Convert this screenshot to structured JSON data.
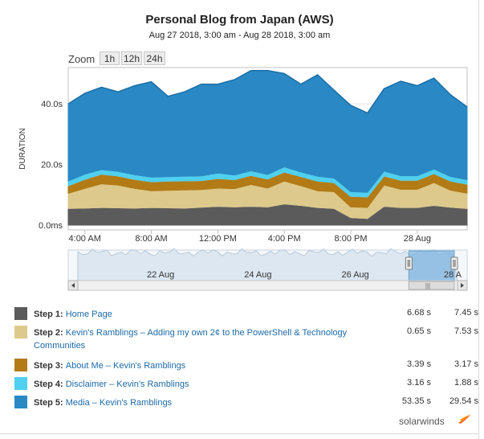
{
  "header": {
    "title": "Personal Blog from Japan (AWS)",
    "subtitle": "Aug 27 2018, 3:00 am - Aug 28 2018, 3:00 am"
  },
  "zoom": {
    "label": "Zoom",
    "buttons": [
      "1h",
      "12h",
      "24h"
    ]
  },
  "chart_data": {
    "type": "area",
    "stacked": true,
    "ylabel": "DURATION",
    "y_ticks": [
      "0.0ms",
      "20.0s",
      "40.0s"
    ],
    "ylim_seconds": [
      0,
      52
    ],
    "x_ticks": [
      "4:00 AM",
      "8:00 AM",
      "12:00 PM",
      "4:00 PM",
      "8:00 PM",
      "28 Aug"
    ],
    "x_hours": [
      0,
      1,
      2,
      3,
      4,
      5,
      6,
      7,
      8,
      9,
      10,
      11,
      12,
      13,
      14,
      15,
      16,
      17,
      18,
      19,
      20,
      21,
      22,
      23,
      24
    ],
    "grid": true,
    "legend": "bottom",
    "series": [
      {
        "name": "Step 1",
        "color": "#5b5b5b",
        "values": [
          5.5,
          5.6,
          5.8,
          5.7,
          5.6,
          5.8,
          5.7,
          5.6,
          5.9,
          6.2,
          6.0,
          6.2,
          6.0,
          7.0,
          6.5,
          5.8,
          5.5,
          2.5,
          2.2,
          6.2,
          5.8,
          5.8,
          6.5,
          5.9,
          5.5
        ]
      },
      {
        "name": "Step 2",
        "color": "#ddc98b",
        "values": [
          5.0,
          6.5,
          7.8,
          7.5,
          6.5,
          5.5,
          5.8,
          6.0,
          5.8,
          6.0,
          6.0,
          7.2,
          6.2,
          7.5,
          6.5,
          5.5,
          5.5,
          3.5,
          3.6,
          7.0,
          6.0,
          6.0,
          7.5,
          5.6,
          5.0
        ]
      },
      {
        "name": "Step 3",
        "color": "#b27b16",
        "values": [
          2.5,
          3.0,
          3.2,
          3.0,
          3.0,
          3.0,
          3.0,
          3.0,
          3.0,
          3.2,
          3.0,
          3.0,
          3.0,
          3.0,
          3.0,
          3.2,
          3.0,
          3.5,
          3.5,
          3.0,
          3.0,
          3.0,
          3.0,
          3.0,
          3.0
        ]
      },
      {
        "name": "Step 4",
        "color": "#4fd0ef",
        "values": [
          1.5,
          1.7,
          1.5,
          1.5,
          1.5,
          1.5,
          1.5,
          1.5,
          1.5,
          1.8,
          1.5,
          1.5,
          1.5,
          1.7,
          1.5,
          1.6,
          1.5,
          1.5,
          1.5,
          1.6,
          1.5,
          1.5,
          1.5,
          1.5,
          1.5
        ]
      },
      {
        "name": "Step 5",
        "color": "#2a89c4",
        "values": [
          25.5,
          26.7,
          27.2,
          26.3,
          29.4,
          31.5,
          26.5,
          27.9,
          30.3,
          29.3,
          31.5,
          33.1,
          34.3,
          30.8,
          29.0,
          33.5,
          29.0,
          28.5,
          26.2,
          27.2,
          31.2,
          29.7,
          30.0,
          27.0,
          24.0
        ]
      }
    ]
  },
  "navigator": {
    "labels": [
      "22 Aug",
      "24 Aug",
      "26 Aug",
      "28 A"
    ],
    "range_days": [
      20.3,
      28.1
    ],
    "selected_days": [
      27.1,
      28.1
    ],
    "scroll_thumb": "|||"
  },
  "legend": [
    {
      "step": "Step 1:",
      "name": "Home Page",
      "color": "#5b5b5b",
      "v1": "6.68 s",
      "v2": "7.45 s"
    },
    {
      "step": "Step 2:",
      "name": "Kevin's Ramblings – Adding my own 2¢ to the PowerShell & Technology Communities",
      "color": "#ddc98b",
      "v1": "0.65 s",
      "v2": "7.53 s"
    },
    {
      "step": "Step 3:",
      "name": "About Me – Kevin's Ramblings",
      "color": "#b27b16",
      "v1": "3.39 s",
      "v2": "3.17 s"
    },
    {
      "step": "Step 4:",
      "name": "Disclaimer – Kevin's Ramblings",
      "color": "#4fd0ef",
      "v1": "3.16 s",
      "v2": "1.88 s"
    },
    {
      "step": "Step 5:",
      "name": "Media – Kevin's Ramblings",
      "color": "#2a89c4",
      "v1": "53.35 s",
      "v2": "29.54 s"
    }
  ],
  "brand": {
    "logo_text": "solarwinds"
  }
}
